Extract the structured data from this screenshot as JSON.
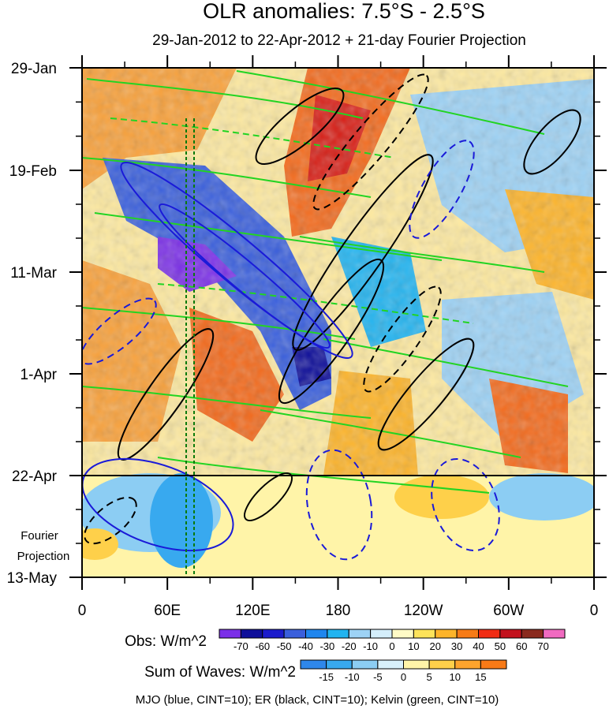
{
  "chart_data": {
    "type": "heatmap",
    "title": "OLR anomalies: 7.5°S - 2.5°S",
    "subtitle": "29-Jan-2012 to 22-Apr-2012 + 21-day Fourier Projection",
    "y_ticks": [
      "29-Jan",
      "19-Feb",
      "11-Mar",
      "1-Apr",
      "22-Apr",
      "13-May"
    ],
    "x_ticks": [
      "0",
      "60E",
      "120E",
      "180",
      "120W",
      "60W",
      "0"
    ],
    "xlim": [
      0,
      360
    ],
    "projection_label": [
      "Fourier",
      "Projection"
    ],
    "obs_colorbar": {
      "label": "Obs: W/m^2",
      "levels": [
        "-70",
        "-60",
        "-50",
        "-40",
        "-30",
        "-20",
        "-10",
        "0",
        "10",
        "20",
        "30",
        "40",
        "50",
        "60",
        "70"
      ],
      "colors": [
        "#7b2fe8",
        "#0f0f9a",
        "#1c1ccc",
        "#3a5fdc",
        "#1f86ee",
        "#22b4f0",
        "#9dd2f5",
        "#d4eefb",
        "#fffbc6",
        "#fde35a",
        "#fdb42a",
        "#f77b16",
        "#f02c13",
        "#c3121e",
        "#8a2a1e",
        "#f06ac0"
      ]
    },
    "waves_colorbar": {
      "label": "Sum of Waves: W/m^2",
      "levels": [
        "-15",
        "-10",
        "-5",
        "0",
        "5",
        "10",
        "15"
      ],
      "colors": [
        "#2e87ea",
        "#38a9ef",
        "#8ccdf3",
        "#d8f0fb",
        "#fff4a8",
        "#fed04a",
        "#fda42d",
        "#f87a17"
      ]
    },
    "footnote": "MJO (blue, CINT=10); ER (black, CINT=10); Kelvin (green, CINT=10)",
    "colors": {
      "mjo": "#1a1ad8",
      "er": "#000000",
      "kelvin": "#22d422"
    }
  }
}
